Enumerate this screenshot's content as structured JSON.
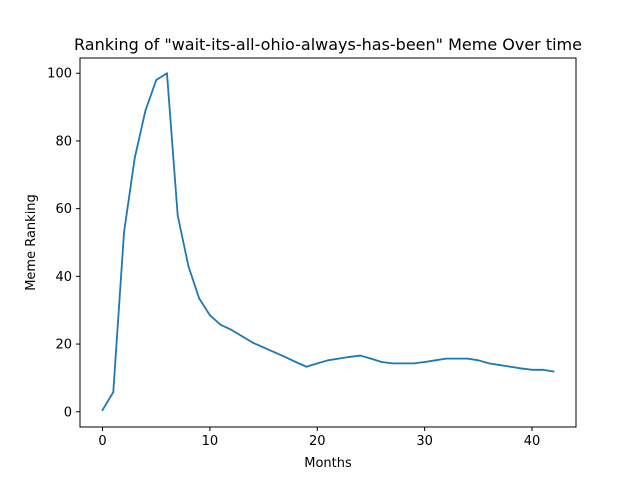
{
  "chart_data": {
    "type": "line",
    "title": "Ranking of \"wait-its-all-ohio-always-has-been\" Meme Over time",
    "xlabel": "Months",
    "ylabel": "Meme Ranking",
    "xlim": [
      -2.1,
      44.1
    ],
    "ylim": [
      -4.5,
      104.5
    ],
    "xticks": [
      0,
      10,
      20,
      30,
      40
    ],
    "yticks": [
      0,
      20,
      40,
      60,
      80,
      100
    ],
    "grid": false,
    "color": "#1f77b4",
    "x": [
      0,
      1,
      2,
      3,
      4,
      5,
      6,
      7,
      8,
      9,
      10,
      11,
      12,
      13,
      14,
      15,
      16,
      17,
      18,
      19,
      20,
      21,
      22,
      23,
      24,
      25,
      26,
      27,
      28,
      29,
      30,
      31,
      32,
      33,
      34,
      35,
      36,
      37,
      38,
      39,
      40,
      41,
      42
    ],
    "series": [
      {
        "values": [
          0.5,
          5.8,
          53,
          75,
          89,
          98,
          100,
          58,
          43,
          33.5,
          28.5,
          25.7,
          24.2,
          22.3,
          20.4,
          19,
          17.6,
          16.2,
          14.7,
          13.3,
          14.3,
          15.2,
          15.7,
          16.2,
          16.6,
          15.7,
          14.7,
          14.3,
          14.3,
          14.3,
          14.7,
          15.2,
          15.7,
          15.7,
          15.7,
          15.2,
          14.3,
          13.8,
          13.3,
          12.8,
          12.4,
          12.4,
          11.9
        ]
      }
    ]
  }
}
